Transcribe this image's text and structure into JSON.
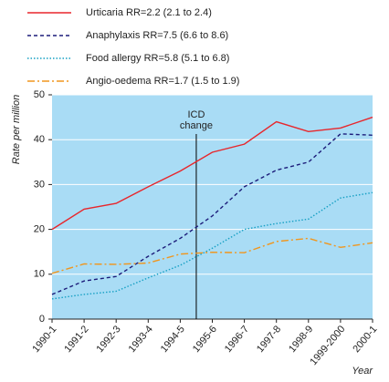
{
  "chart_data": {
    "type": "line",
    "ylabel": "Rate per million",
    "xlabel": "Year",
    "annotation": [
      "ICD",
      "change"
    ],
    "categories": [
      "1990-1",
      "1991-2",
      "1992-3",
      "1993-4",
      "1994-5",
      "1995-6",
      "1996-7",
      "1997-8",
      "1998-9",
      "1999-2000",
      "2000-1"
    ],
    "series": [
      {
        "name": "Urticaria  RR=2.2 (2.1 to 2.4)",
        "color": "#e8262b",
        "style": "solid",
        "values": [
          20,
          24.5,
          25.8,
          29.5,
          33,
          37.2,
          39,
          44,
          41.8,
          42.6,
          45
        ]
      },
      {
        "name": "Anaphylaxis  RR=7.5 (6.6 to 8.6)",
        "color": "#1c1c7a",
        "style": "dashed",
        "values": [
          5.5,
          8.5,
          9.5,
          14,
          18,
          23,
          29.5,
          33.2,
          35,
          41.3,
          41
        ]
      },
      {
        "name": "Food allergy  RR=5.8 (5.1 to 6.8)",
        "color": "#17a0c4",
        "style": "dotted",
        "values": [
          4.5,
          5.5,
          6.2,
          9.2,
          12,
          15.8,
          20,
          21.3,
          22.3,
          27,
          28.2
        ]
      },
      {
        "name": "Angio-oedema  RR=1.7 (1.5 to 1.9)",
        "color": "#f0961e",
        "style": "dashdot",
        "values": [
          10.2,
          12.3,
          12.2,
          12.5,
          14.5,
          14.9,
          14.8,
          17.3,
          18,
          16,
          17
        ]
      }
    ],
    "ylim": [
      0,
      50
    ],
    "yticks": [
      0,
      10,
      20,
      30,
      40,
      50
    ],
    "grid": true,
    "background": "#a9dcf5"
  }
}
